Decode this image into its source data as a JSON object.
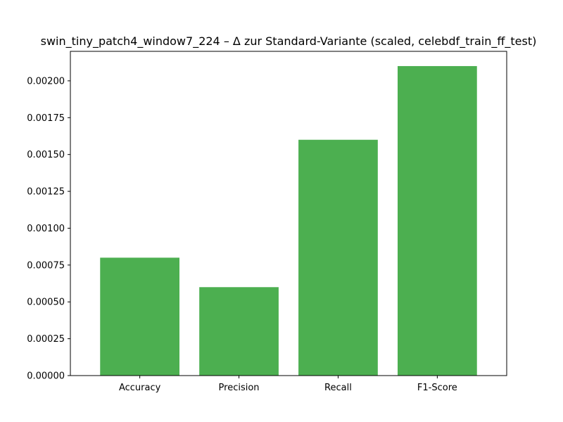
{
  "chart_data": {
    "type": "bar",
    "title": "swin_tiny_patch4_window7_224 – Δ zur Standard-Variante (scaled, celebdf_train_ff_test)",
    "xlabel": "",
    "ylabel": "",
    "categories": [
      "Accuracy",
      "Precision",
      "Recall",
      "F1-Score"
    ],
    "values": [
      0.0008,
      0.0006,
      0.0016,
      0.0021
    ],
    "ylim": [
      0,
      0.0022
    ],
    "yticks": [
      0,
      0.00025,
      0.0005,
      0.00075,
      0.001,
      0.00125,
      0.0015,
      0.00175,
      0.002
    ],
    "ytick_labels": [
      "0.00000",
      "0.00025",
      "0.00050",
      "0.00075",
      "0.00100",
      "0.00125",
      "0.00150",
      "0.00175",
      "0.00200"
    ],
    "bar_color": "#4caf50",
    "grid": false,
    "legend": null
  }
}
